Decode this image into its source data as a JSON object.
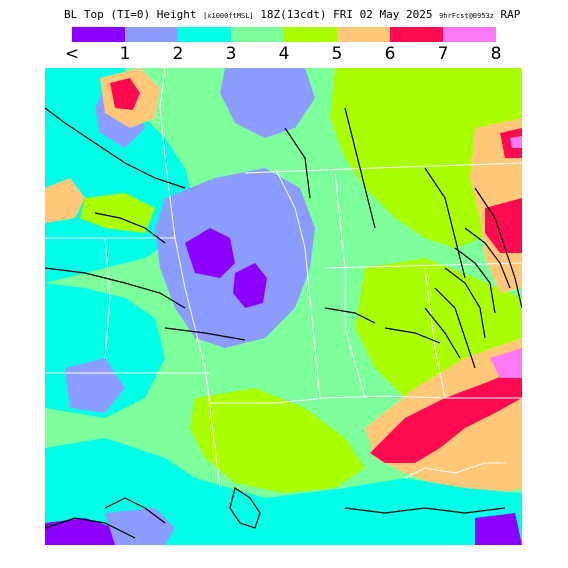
{
  "header": {
    "title_main": "BL Top (TI=0) Height",
    "title_units": "[x1000ftMSL]",
    "title_time": "18Z(13cdt) FRI 02 May 2025",
    "title_fcst": "9hrFcst@0953z",
    "title_model": "RAP"
  },
  "legend": {
    "colors": [
      "#8c00ff",
      "#8c9cff",
      "#00ffe6",
      "#7dff9c",
      "#aaff00",
      "#ffc878",
      "#ff0a50",
      "#ff78f5"
    ],
    "tick_labels": [
      "<",
      "1",
      "2",
      "3",
      "4",
      "5",
      "6",
      "7",
      "8"
    ]
  },
  "map": {
    "field_colors": {
      "purple": "#8c00ff",
      "periwinkle": "#8c9cff",
      "cyan": "#00ffe6",
      "mint": "#7dff9c",
      "lime": "#aaff00",
      "orange": "#ffc878",
      "red": "#ff0a50",
      "pink": "#ff78f5"
    }
  }
}
